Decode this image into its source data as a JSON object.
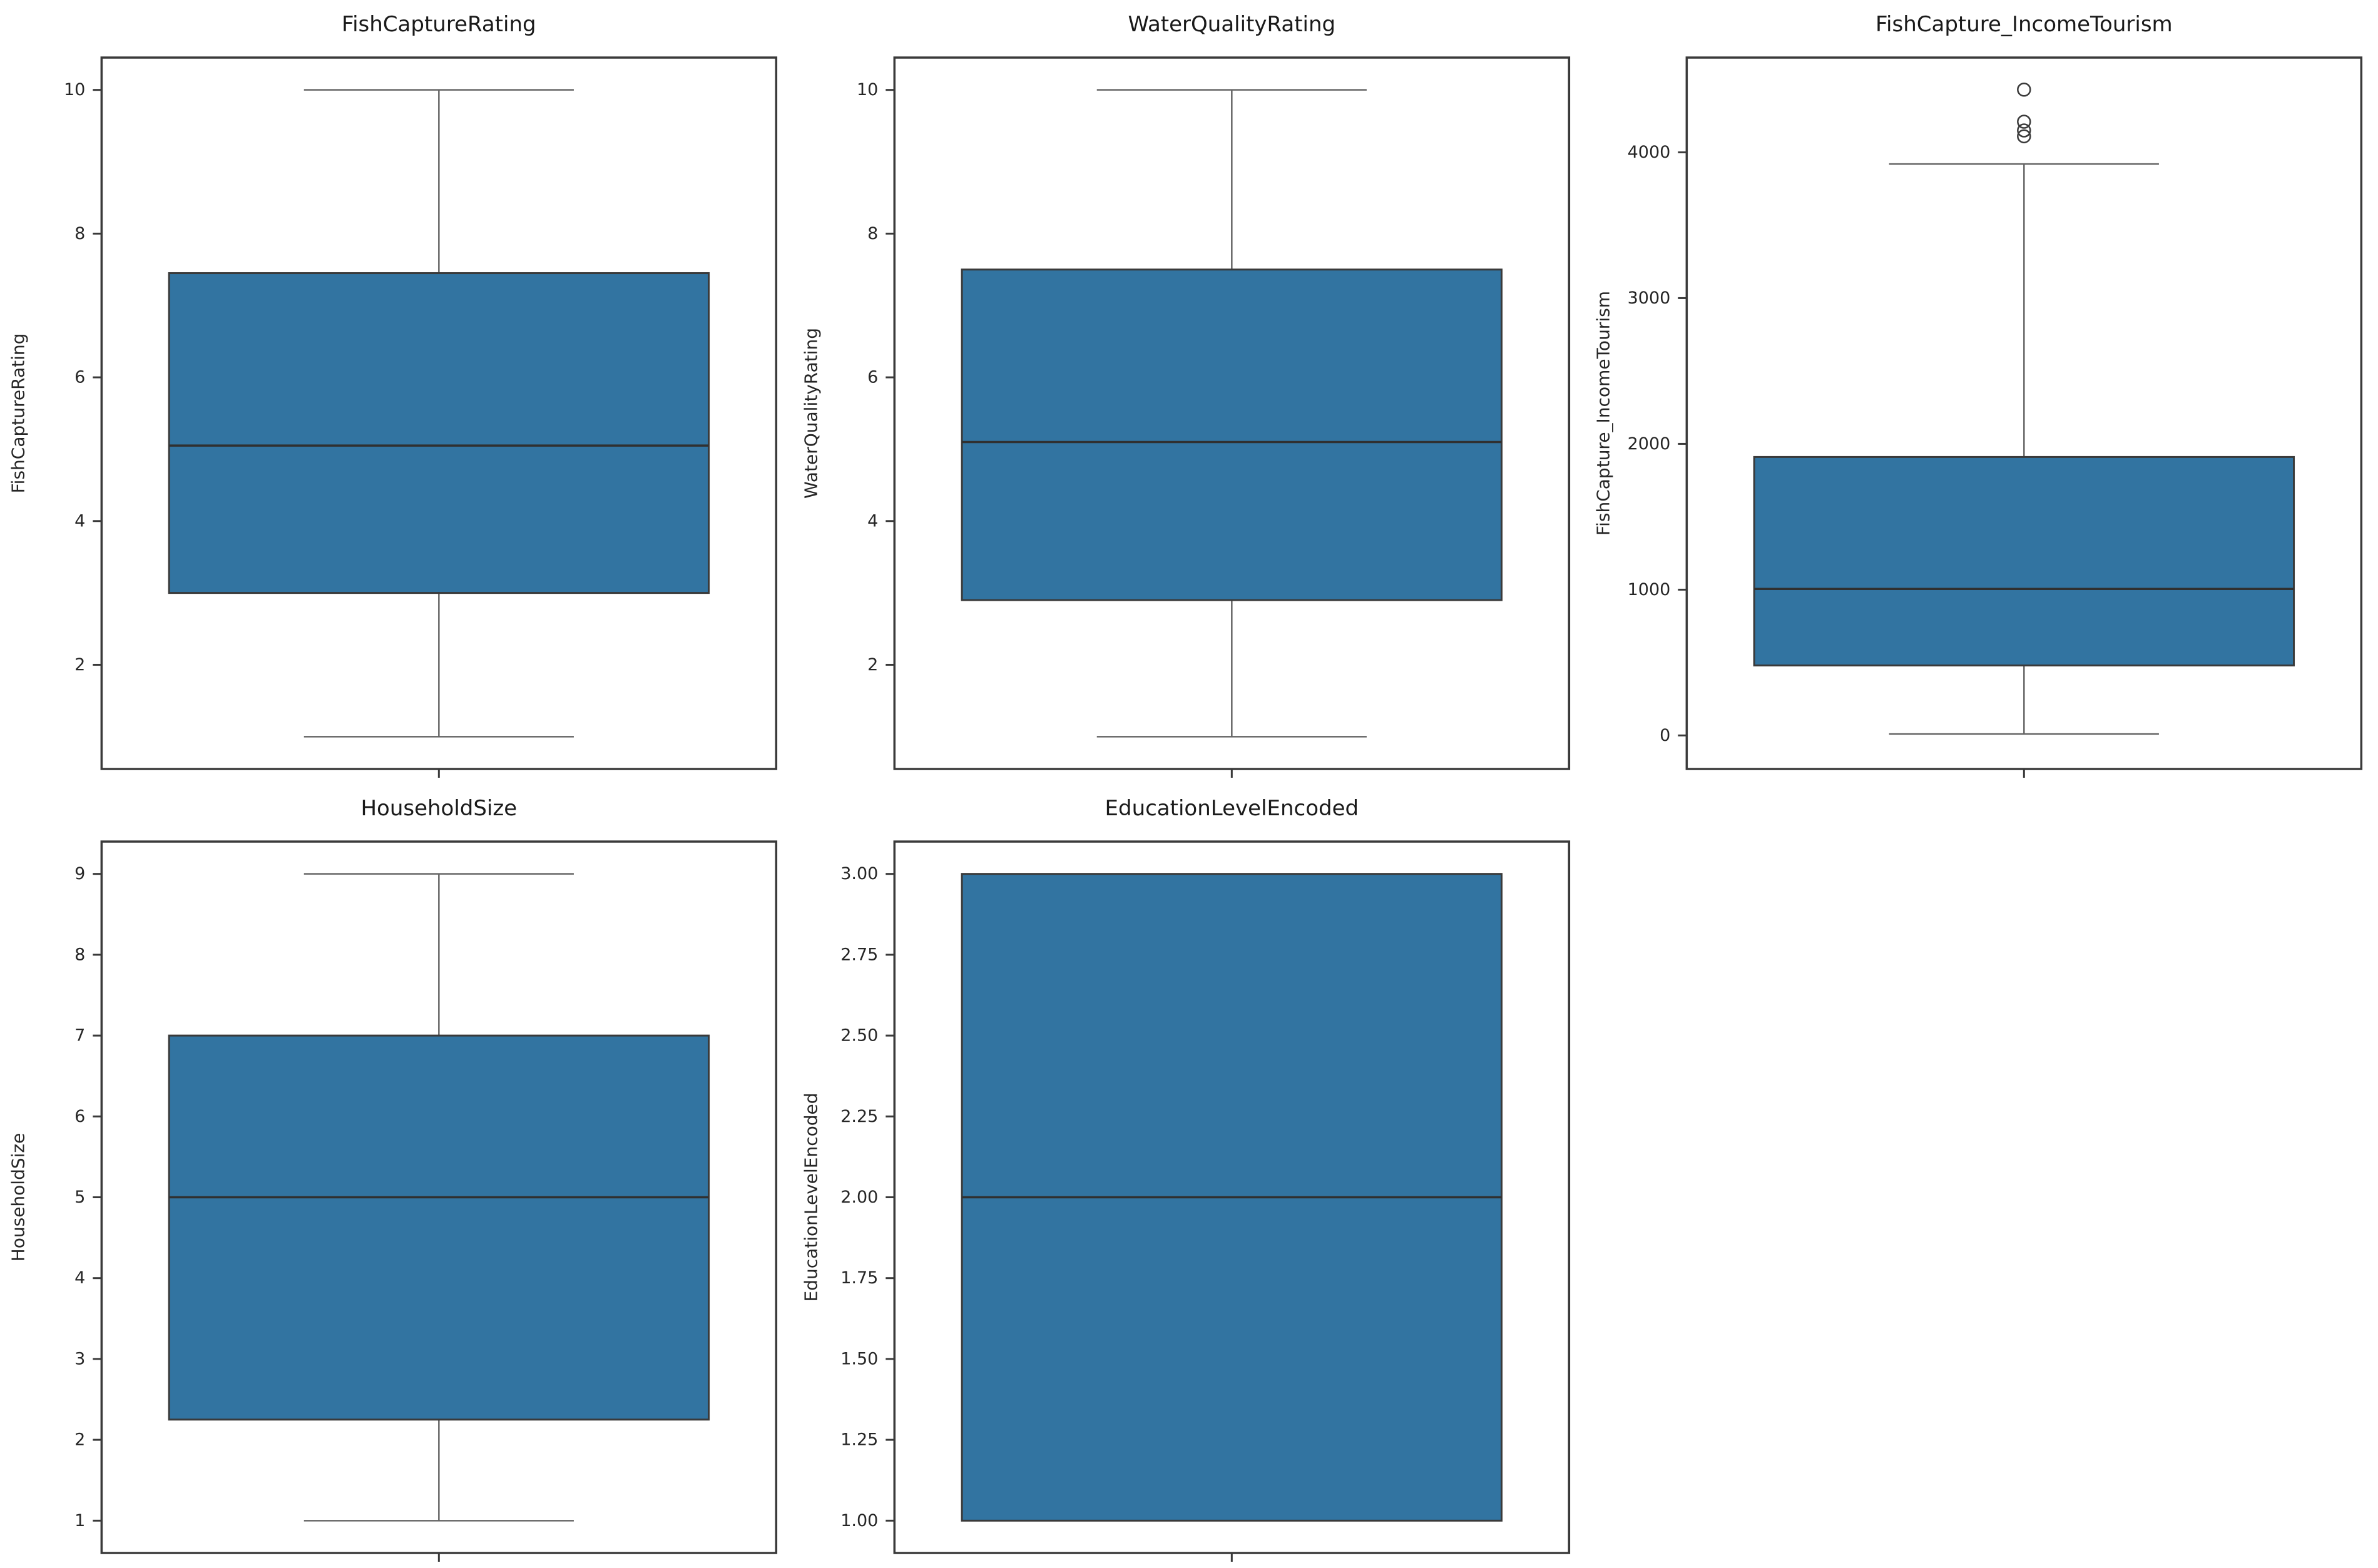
{
  "figure": {
    "background": "#FFFFFF",
    "grid": {
      "rows": 2,
      "cols": 3,
      "filled_cells": 5
    }
  },
  "colors": {
    "box_fill": "#3274A1",
    "box_edge": "#3A3A3A",
    "median_line": "#303030",
    "whisker": "#666666",
    "spine": "#3A3A3A",
    "tick_text": "#262626",
    "title_text": "#1A1A1A"
  },
  "chart_data": [
    {
      "type": "box",
      "title": "FishCaptureRating",
      "ylabel": "FishCaptureRating",
      "ylim": [
        0.55,
        10.45
      ],
      "yticks": [
        2,
        4,
        6,
        8,
        10
      ],
      "tick_decimals": 0,
      "grid": false,
      "box": {
        "whisker_low": 1.0,
        "q1": 3.0,
        "median": 5.05,
        "q3": 7.45,
        "whisker_high": 10.0,
        "outliers": []
      }
    },
    {
      "type": "box",
      "title": "WaterQualityRating",
      "ylabel": "WaterQualityRating",
      "ylim": [
        0.55,
        10.45
      ],
      "yticks": [
        2,
        4,
        6,
        8,
        10
      ],
      "tick_decimals": 0,
      "grid": false,
      "box": {
        "whisker_low": 1.0,
        "q1": 2.9,
        "median": 5.1,
        "q3": 7.5,
        "whisker_high": 10.0,
        "outliers": []
      }
    },
    {
      "type": "box",
      "title": "FishCapture_IncomeTourism",
      "ylabel": "FishCapture_IncomeTourism",
      "ylim": [
        -230,
        4650
      ],
      "yticks": [
        0,
        1000,
        2000,
        3000,
        4000
      ],
      "tick_decimals": 0,
      "grid": false,
      "box": {
        "whisker_low": 10,
        "q1": 480,
        "median": 1005,
        "q3": 1910,
        "whisker_high": 3920,
        "outliers": [
          4430,
          4210,
          4150,
          4110
        ]
      }
    },
    {
      "type": "box",
      "title": "HouseholdSize",
      "ylabel": "HouseholdSize",
      "ylim": [
        0.6,
        9.4
      ],
      "yticks": [
        1,
        2,
        3,
        4,
        5,
        6,
        7,
        8,
        9
      ],
      "tick_decimals": 0,
      "grid": false,
      "box": {
        "whisker_low": 1.0,
        "q1": 2.25,
        "median": 5.0,
        "q3": 7.0,
        "whisker_high": 9.0,
        "outliers": []
      }
    },
    {
      "type": "box",
      "title": "EducationLevelEncoded",
      "ylabel": "EducationLevelEncoded",
      "ylim": [
        0.9,
        3.1
      ],
      "yticks": [
        1.0,
        1.25,
        1.5,
        1.75,
        2.0,
        2.25,
        2.5,
        2.75,
        3.0
      ],
      "tick_decimals": 2,
      "grid": false,
      "box": {
        "whisker_low": 1.0,
        "q1": 1.0,
        "median": 2.0,
        "q3": 3.0,
        "whisker_high": 3.0,
        "outliers": []
      }
    }
  ]
}
